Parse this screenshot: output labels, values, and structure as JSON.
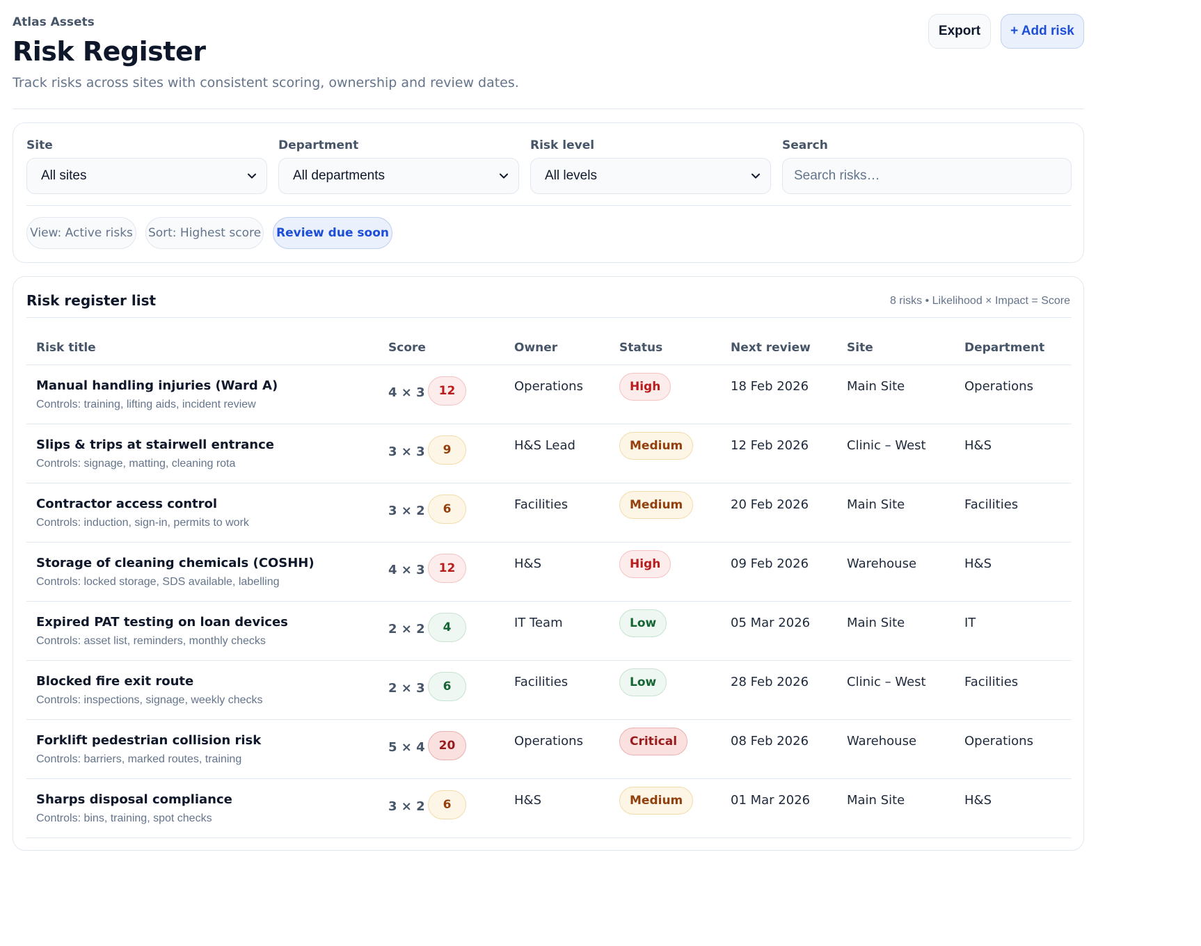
{
  "header": {
    "org": "Atlas Assets",
    "title": "Risk Register",
    "subtitle": "Track risks across sites with consistent scoring, ownership and review dates.",
    "export_label": "Export",
    "add_label": "+ Add risk"
  },
  "filters": {
    "site": {
      "label": "Site",
      "value": "All sites"
    },
    "department": {
      "label": "Department",
      "value": "All departments"
    },
    "risk_level": {
      "label": "Risk level",
      "value": "All levels"
    },
    "search": {
      "label": "Search",
      "placeholder": "Search risks…"
    },
    "chips": [
      {
        "label": "View: Active risks",
        "active": false
      },
      {
        "label": "Sort: Highest score",
        "active": false
      },
      {
        "label": "Review due soon",
        "active": true
      }
    ]
  },
  "list": {
    "title": "Risk register list",
    "meta": "8 risks • Likelihood × Impact = Score",
    "columns": [
      "Risk title",
      "Score",
      "Owner",
      "Status",
      "Next review",
      "Site",
      "Department"
    ],
    "rows": [
      {
        "title": "Manual handling injuries (Ward A)",
        "controls": "Controls: training, lifting aids, incident review",
        "lxi": "4 × 3",
        "score": "12",
        "level": "high",
        "owner": "Operations",
        "status": "High",
        "review": "18 Feb 2026",
        "site": "Main Site",
        "department": "Operations"
      },
      {
        "title": "Slips & trips at stairwell entrance",
        "controls": "Controls: signage, matting, cleaning rota",
        "lxi": "3 × 3",
        "score": "9",
        "level": "medium",
        "owner": "H&S Lead",
        "status": "Medium",
        "review": "12 Feb 2026",
        "site": "Clinic – West",
        "department": "H&S"
      },
      {
        "title": "Contractor access control",
        "controls": "Controls: induction, sign-in, permits to work",
        "lxi": "3 × 2",
        "score": "6",
        "level": "medium",
        "owner": "Facilities",
        "status": "Medium",
        "review": "20 Feb 2026",
        "site": "Main Site",
        "department": "Facilities"
      },
      {
        "title": "Storage of cleaning chemicals (COSHH)",
        "controls": "Controls: locked storage, SDS available, labelling",
        "lxi": "4 × 3",
        "score": "12",
        "level": "high",
        "owner": "H&S",
        "status": "High",
        "review": "09 Feb 2026",
        "site": "Warehouse",
        "department": "H&S"
      },
      {
        "title": "Expired PAT testing on loan devices",
        "controls": "Controls: asset list, reminders, monthly checks",
        "lxi": "2 × 2",
        "score": "4",
        "level": "low",
        "owner": "IT Team",
        "status": "Low",
        "review": "05 Mar 2026",
        "site": "Main Site",
        "department": "IT"
      },
      {
        "title": "Blocked fire exit route",
        "controls": "Controls: inspections, signage, weekly checks",
        "lxi": "2 × 3",
        "score": "6",
        "level": "low",
        "owner": "Facilities",
        "status": "Low",
        "review": "28 Feb 2026",
        "site": "Clinic – West",
        "department": "Facilities"
      },
      {
        "title": "Forklift pedestrian collision risk",
        "controls": "Controls: barriers, marked routes, training",
        "lxi": "5 × 4",
        "score": "20",
        "level": "critical",
        "owner": "Operations",
        "status": "Critical",
        "review": "08 Feb 2026",
        "site": "Warehouse",
        "department": "Operations"
      },
      {
        "title": "Sharps disposal compliance",
        "controls": "Controls: bins, training, spot checks",
        "lxi": "3 × 2",
        "score": "6",
        "level": "medium",
        "owner": "H&S",
        "status": "Medium",
        "review": "01 Mar 2026",
        "site": "Main Site",
        "department": "H&S"
      }
    ]
  },
  "icons": {
    "select": "chevron-down-icon"
  },
  "colors": {
    "accent": "#1d4ed8",
    "high": "#b91c1c",
    "medium": "#92400e",
    "low": "#166534",
    "critical": "#991b1b"
  }
}
